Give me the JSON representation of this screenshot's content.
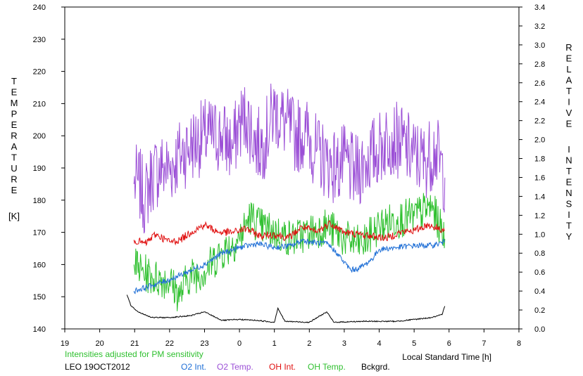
{
  "chart_data": {
    "type": "line",
    "x_axis": {
      "label": "Local Standard Time [h]",
      "range": [
        19,
        32
      ],
      "ticks": [
        19,
        20,
        21,
        22,
        23,
        24,
        25,
        26,
        27,
        28,
        29,
        30,
        31,
        32
      ],
      "tick_labels": [
        "19",
        "20",
        "21",
        "22",
        "23",
        "0",
        "1",
        "2",
        "3",
        "4",
        "5",
        "6",
        "7",
        "8"
      ]
    },
    "y_left": {
      "label_letters": [
        "T",
        "E",
        "M",
        "P",
        "E",
        "R",
        "A",
        "T",
        "U",
        "R",
        "E"
      ],
      "unit": "[K]",
      "range": [
        140,
        240
      ],
      "ticks": [
        "140",
        "150",
        "160",
        "170",
        "180",
        "190",
        "200",
        "210",
        "220",
        "230",
        "240"
      ]
    },
    "y_right": {
      "label_letters_1": [
        "R",
        "E",
        "L",
        "A",
        "T",
        "I",
        "V",
        "E"
      ],
      "label_letters_2": [
        "I",
        "N",
        "T",
        "E",
        "N",
        "S",
        "I",
        "T",
        "Y"
      ],
      "range": [
        0,
        3.4
      ],
      "ticks": [
        "0.0",
        "0.2",
        "0.4",
        "0.6",
        "0.8",
        "1.0",
        "1.2",
        "1.4",
        "1.6",
        "1.8",
        "2.0",
        "2.2",
        "2.4",
        "2.6",
        "2.8",
        "3.0",
        "3.2",
        "3.4"
      ]
    },
    "note": "Intensities adjusted for PM sensitivity",
    "station": "LEO 19OCT2012",
    "series": [
      {
        "name": "O2 Int.",
        "axis": "right",
        "color": "#1f6fd6",
        "points": [
          [
            20.98,
            0.4
          ],
          [
            21.5,
            0.46
          ],
          [
            22,
            0.52
          ],
          [
            22.5,
            0.6
          ],
          [
            23,
            0.68
          ],
          [
            23.5,
            0.8
          ],
          [
            24,
            0.86
          ],
          [
            24.5,
            0.9
          ],
          [
            25,
            0.86
          ],
          [
            25.5,
            0.88
          ],
          [
            25.8,
            0.94
          ],
          [
            26,
            0.92
          ],
          [
            26.5,
            0.9
          ],
          [
            26.8,
            0.8
          ],
          [
            27,
            0.7
          ],
          [
            27.2,
            0.62
          ],
          [
            27.4,
            0.64
          ],
          [
            27.6,
            0.68
          ],
          [
            27.8,
            0.74
          ],
          [
            28,
            0.84
          ],
          [
            28.5,
            0.86
          ],
          [
            29,
            0.88
          ],
          [
            29.5,
            0.88
          ],
          [
            29.88,
            0.92
          ]
        ]
      },
      {
        "name": "O2 Temp.",
        "axis": "left",
        "color": "#9b4fd6",
        "points": [
          [
            20.98,
            185
          ],
          [
            21.1,
            186
          ],
          [
            21.3,
            180
          ],
          [
            21.5,
            188
          ],
          [
            21.8,
            190
          ],
          [
            22,
            190
          ],
          [
            22.3,
            194
          ],
          [
            22.6,
            197
          ],
          [
            23,
            200
          ],
          [
            23.5,
            200
          ],
          [
            23.8,
            196
          ],
          [
            24,
            204
          ],
          [
            24.2,
            206
          ],
          [
            24.5,
            197
          ],
          [
            24.7,
            198
          ],
          [
            25,
            208
          ],
          [
            25.3,
            204
          ],
          [
            25.6,
            200
          ],
          [
            25.9,
            201
          ],
          [
            26.2,
            195
          ],
          [
            26.5,
            192
          ],
          [
            26.8,
            190
          ],
          [
            27,
            192
          ],
          [
            27.3,
            188
          ],
          [
            27.6,
            192
          ],
          [
            28,
            196
          ],
          [
            28.3,
            200
          ],
          [
            28.6,
            198
          ],
          [
            29,
            194
          ],
          [
            29.3,
            192
          ],
          [
            29.6,
            196
          ],
          [
            29.88,
            187
          ]
        ]
      },
      {
        "name": "OH Int.",
        "axis": "right",
        "color": "#e01010",
        "points": [
          [
            20.98,
            0.94
          ],
          [
            21.3,
            0.9
          ],
          [
            21.6,
            1.0
          ],
          [
            22,
            0.92
          ],
          [
            22.3,
            0.94
          ],
          [
            22.6,
            1.02
          ],
          [
            23,
            1.1
          ],
          [
            23.4,
            1.02
          ],
          [
            23.8,
            1.02
          ],
          [
            24.2,
            1.06
          ],
          [
            24.6,
            0.98
          ],
          [
            25,
            1.0
          ],
          [
            25.4,
            0.96
          ],
          [
            25.8,
            1.08
          ],
          [
            26.2,
            1.02
          ],
          [
            26.6,
            1.12
          ],
          [
            27,
            1.02
          ],
          [
            27.4,
            1.0
          ],
          [
            27.8,
            0.98
          ],
          [
            28.2,
            0.96
          ],
          [
            28.6,
            1.02
          ],
          [
            29,
            1.04
          ],
          [
            29.4,
            1.1
          ],
          [
            29.88,
            1.04
          ]
        ]
      },
      {
        "name": "OH Temp.",
        "axis": "left",
        "color": "#2fc02f",
        "points": [
          [
            20.98,
            160
          ],
          [
            21.2,
            158
          ],
          [
            21.5,
            156
          ],
          [
            22,
            155
          ],
          [
            22.3,
            150
          ],
          [
            22.5,
            156
          ],
          [
            23,
            158
          ],
          [
            23.5,
            164
          ],
          [
            24,
            168
          ],
          [
            24.3,
            175
          ],
          [
            24.6,
            172
          ],
          [
            25,
            170
          ],
          [
            25.5,
            168
          ],
          [
            26,
            170
          ],
          [
            26.5,
            172
          ],
          [
            27,
            168
          ],
          [
            27.5,
            166
          ],
          [
            28,
            172
          ],
          [
            28.5,
            174
          ],
          [
            29,
            175
          ],
          [
            29.5,
            178
          ],
          [
            29.88,
            168
          ]
        ]
      },
      {
        "name": "Bckgrd.",
        "axis": "right",
        "color": "#000000",
        "points": [
          [
            20.78,
            0.36
          ],
          [
            20.9,
            0.24
          ],
          [
            21.1,
            0.18
          ],
          [
            21.5,
            0.12
          ],
          [
            22,
            0.12
          ],
          [
            22.6,
            0.14
          ],
          [
            23,
            0.18
          ],
          [
            23.5,
            0.09
          ],
          [
            24,
            0.1
          ],
          [
            24.5,
            0.09
          ],
          [
            25,
            0.07
          ],
          [
            25.1,
            0.22
          ],
          [
            25.3,
            0.08
          ],
          [
            26,
            0.07
          ],
          [
            26.5,
            0.18
          ],
          [
            26.7,
            0.07
          ],
          [
            27.5,
            0.08
          ],
          [
            28,
            0.08
          ],
          [
            28.5,
            0.08
          ],
          [
            29,
            0.1
          ],
          [
            29.5,
            0.12
          ],
          [
            29.8,
            0.15
          ],
          [
            29.88,
            0.24
          ]
        ]
      }
    ]
  }
}
